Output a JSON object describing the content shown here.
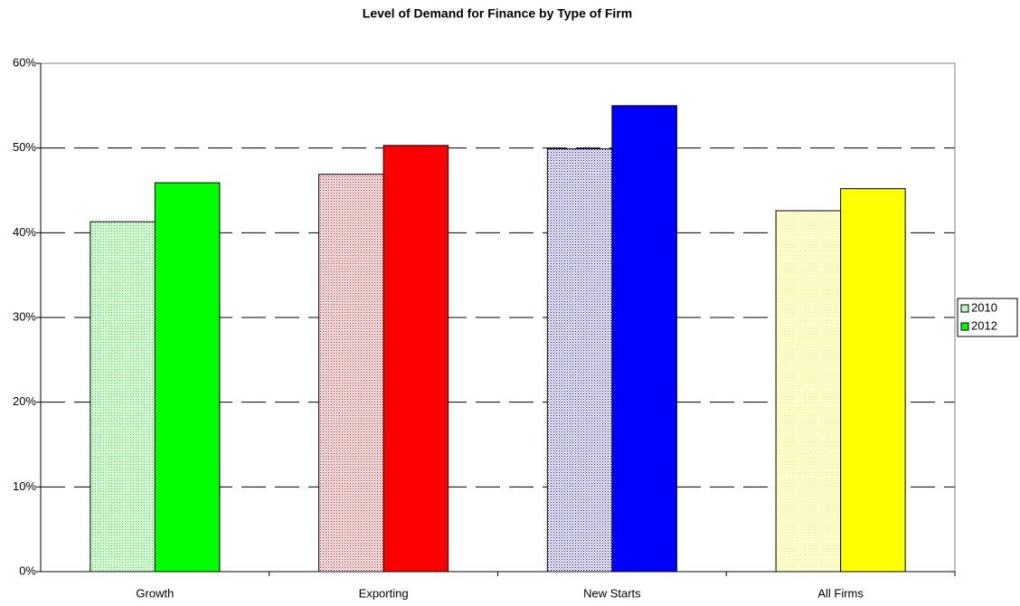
{
  "chart_data": {
    "type": "bar",
    "title": "Level of Demand for Finance by Type of Firm",
    "categories": [
      "Growth",
      "Exporting",
      "New Starts",
      "All Firms"
    ],
    "series": [
      {
        "name": "2010",
        "pattern": "dotted",
        "colors": [
          "#00ff00",
          "#ff0000",
          "#0000ff",
          "#ffff00"
        ],
        "values": [
          41.3,
          46.9,
          49.9,
          42.6
        ]
      },
      {
        "name": "2012",
        "pattern": "solid",
        "colors": [
          "#00ff00",
          "#ff0000",
          "#0000ff",
          "#ffff00"
        ],
        "values": [
          45.9,
          50.3,
          55.0,
          45.2
        ]
      }
    ],
    "ylim": [
      0,
      60
    ],
    "yticks": [
      {
        "value": 0,
        "label": "0%"
      },
      {
        "value": 10,
        "label": "10%"
      },
      {
        "value": 20,
        "label": "20%"
      },
      {
        "value": 30,
        "label": "30%"
      },
      {
        "value": 40,
        "label": "40%"
      },
      {
        "value": 50,
        "label": "50%"
      },
      {
        "value": 60,
        "label": "60%"
      }
    ],
    "grid": true,
    "legend": "right"
  }
}
